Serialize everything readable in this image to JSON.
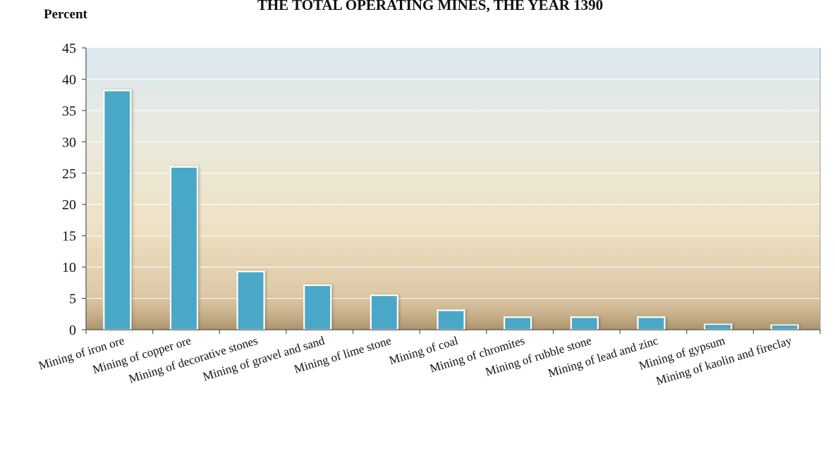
{
  "chart_data": {
    "type": "bar",
    "title": "THE TOTAL OPERATING MINES, THE YEAR 1390",
    "ylabel": "Percent",
    "xlabel": "",
    "ylim": [
      0,
      45
    ],
    "yticks": [
      0,
      5,
      10,
      15,
      20,
      25,
      30,
      35,
      40,
      45
    ],
    "grid": true,
    "categories": [
      "Mining of iron ore",
      "Mining of copper ore",
      "Mining of decorative stones",
      "Mining of gravel and sand",
      "Mining of lime stone",
      "Mining of coal",
      "Mining of chromites",
      "Mining of rubble stone",
      "Mining of lead and zinc",
      "Mining of gypsum",
      "Mining of kaolin and fireclay"
    ],
    "values": [
      38.2,
      26.0,
      9.3,
      7.1,
      5.5,
      3.1,
      2.0,
      2.0,
      2.0,
      0.9,
      0.8
    ],
    "colors": {
      "bar_fill": "#4aa8c7",
      "bar_stroke": "#ffffff",
      "bg_top": "#dce9f0",
      "bg_mid": "#efe6ce",
      "bg_bottom": "#d6c19c",
      "axis": "#555555",
      "grid": "#ffffff"
    }
  }
}
